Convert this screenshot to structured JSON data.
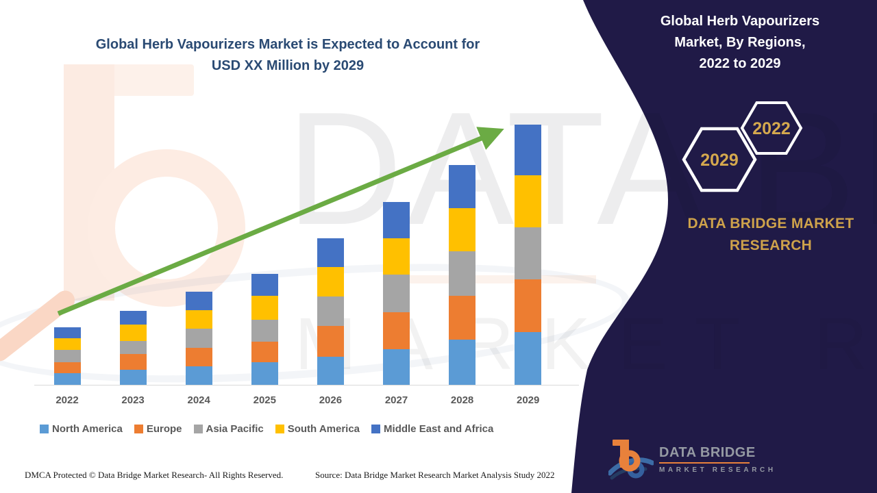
{
  "left": {
    "title_line1": "Global Herb Vapourizers Market is Expected to Account for",
    "title_line2": "USD XX Million by 2029",
    "footer_left": "DMCA Protected © Data Bridge Market Research- All Rights Reserved.",
    "footer_right": "Source: Data Bridge Market Research Market Analysis Study 2022"
  },
  "chart_data": {
    "type": "bar",
    "stacked": true,
    "title": "Global Herb Vapourizers Market, By Regions, 2022 to 2029",
    "categories": [
      "2022",
      "2023",
      "2024",
      "2025",
      "2026",
      "2027",
      "2028",
      "2029"
    ],
    "series": [
      {
        "name": "North America",
        "color": "#5B9BD5",
        "values": [
          17,
          22,
          27,
          33,
          41,
          52,
          66,
          77
        ]
      },
      {
        "name": "Europe",
        "color": "#ED7D31",
        "values": [
          16,
          23,
          27,
          30,
          45,
          54,
          64,
          77
        ]
      },
      {
        "name": "Asia Pacific",
        "color": "#A5A5A5",
        "values": [
          18,
          19,
          28,
          32,
          43,
          55,
          65,
          76
        ]
      },
      {
        "name": "South America",
        "color": "#FFC000",
        "values": [
          17,
          24,
          27,
          35,
          43,
          53,
          63,
          76
        ]
      },
      {
        "name": "Middle East and Africa",
        "color": "#4472C4",
        "values": [
          16,
          20,
          27,
          32,
          42,
          53,
          63,
          74
        ]
      }
    ],
    "xlabel": "",
    "ylabel": "",
    "value_axis_visible": false,
    "grid": false,
    "legend_position": "bottom",
    "trend_arrow": true,
    "trend_arrow_color": "#6BAB44",
    "units_note": "values are relative index units (no value axis shown)"
  },
  "right_panel": {
    "bg_color": "#201A47",
    "title_lines": [
      "Global Herb Vapourizers",
      "Market, By Regions,",
      "2022 to 2029"
    ],
    "hexagons": [
      {
        "label": "2029"
      },
      {
        "label": "2022"
      }
    ],
    "gold_color": "#CEA24B",
    "brand_line1": "DATA BRIDGE MARKET",
    "brand_line2": "RESEARCH",
    "logo": {
      "name": "DATA BRIDGE",
      "subtitle": "MARKET RESEARCH"
    }
  },
  "watermark": {
    "text1": "DATA BRIDGE",
    "text2": "MARKET RESEARCH"
  }
}
